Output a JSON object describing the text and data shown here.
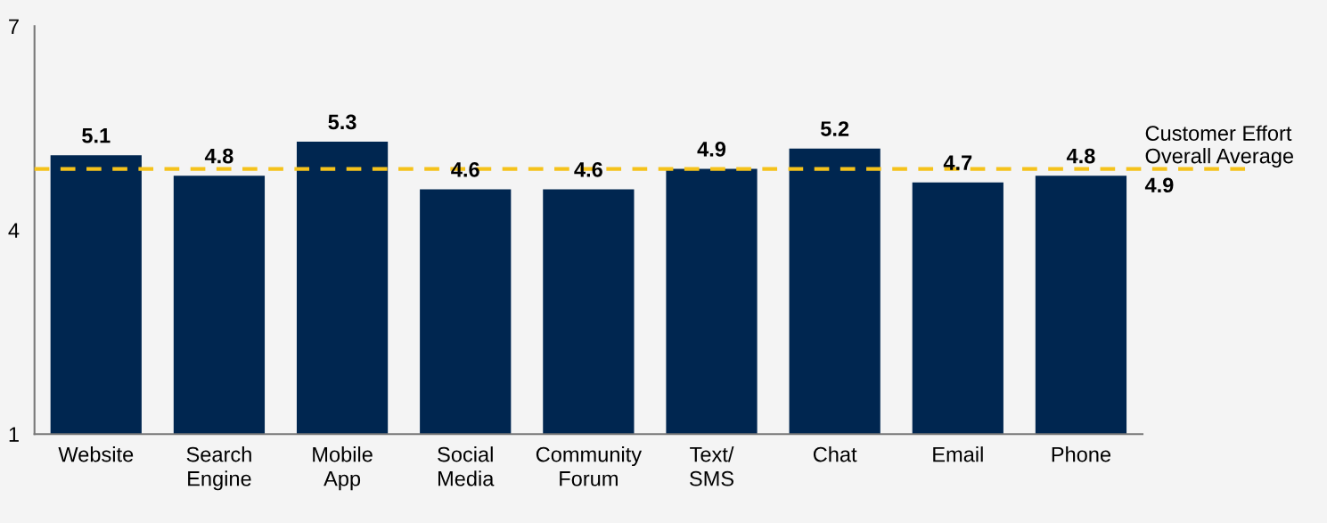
{
  "chart_data": {
    "type": "bar",
    "categories": [
      "Website",
      "Search\nEngine",
      "Mobile\nApp",
      "Social\nMedia",
      "Community\nForum",
      "Text/\nSMS",
      "Chat",
      "Email",
      "Phone"
    ],
    "values": [
      5.1,
      4.8,
      5.3,
      4.6,
      4.6,
      4.9,
      5.2,
      4.7,
      4.8
    ],
    "color": "#002650",
    "ylim": [
      1,
      7
    ],
    "yticks": [
      1,
      4,
      7
    ],
    "data_labels": true,
    "grid": false,
    "legend": false,
    "ref_lines": [
      {
        "axis": "y",
        "value": 4.9,
        "label": "Customer Effort\nOverall Average\n4.9",
        "color": "#f5c21b",
        "line_style": "dashed"
      }
    ]
  }
}
